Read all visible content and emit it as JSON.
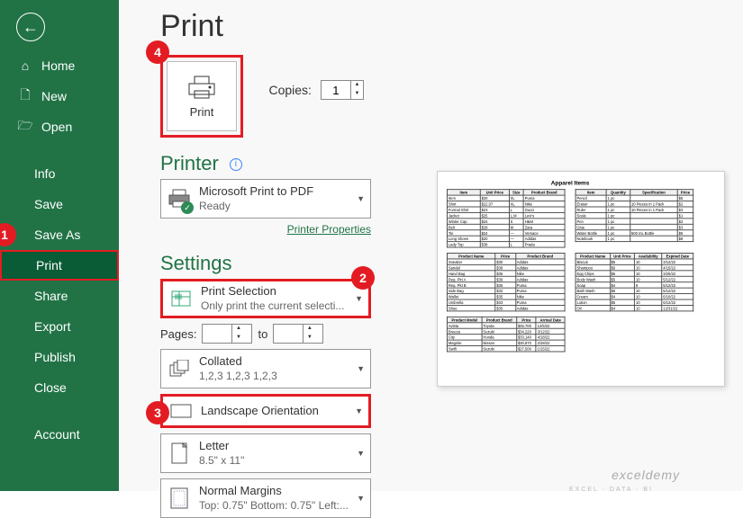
{
  "sidebar": {
    "items": [
      {
        "label": "Home",
        "icon": "⌂"
      },
      {
        "label": "New",
        "icon": "🗋"
      },
      {
        "label": "Open",
        "icon": "📂"
      }
    ],
    "lower_items": [
      {
        "label": "Info"
      },
      {
        "label": "Save"
      },
      {
        "label": "Save As"
      },
      {
        "label": "Print",
        "selected": true
      },
      {
        "label": "Share"
      },
      {
        "label": "Export"
      },
      {
        "label": "Publish"
      },
      {
        "label": "Close"
      }
    ],
    "account": "Account"
  },
  "main": {
    "title": "Print",
    "print_label": "Print",
    "copies_label": "Copies:",
    "copies_value": "1",
    "printer_heading": "Printer",
    "printer_name": "Microsoft Print to PDF",
    "printer_status": "Ready",
    "printer_props": "Printer Properties",
    "settings_heading": "Settings",
    "setting_selection": "Print Selection",
    "setting_selection_sub": "Only print the current selecti...",
    "pages_label": "Pages:",
    "pages_to": "to",
    "collated": "Collated",
    "collated_sub": "1,2,3   1,2,3   1,2,3",
    "orientation": "Landscape Orientation",
    "paper": "Letter",
    "paper_sub": "8.5\" x 11\"",
    "margins": "Normal Margins",
    "margins_sub": "Top: 0.75\" Bottom: 0.75\" Left:..."
  },
  "bubbles": {
    "1": "1",
    "2": "2",
    "3": "3",
    "4": "4"
  },
  "preview": {
    "title": "Apparel Items",
    "tables": {
      "t1": {
        "headers": [
          "Item",
          "Unit Price",
          "Size",
          "Product Brand"
        ],
        "rows": [
          [
            "Item",
            "$20",
            "XL",
            "Puma"
          ],
          [
            "Shirt",
            "$22.07",
            "XL",
            "Nike"
          ],
          [
            "Formal Shirt",
            "$23",
            "L",
            "Gucci"
          ],
          [
            "Jacket",
            "$25",
            "L,M",
            "Levi's"
          ],
          [
            "Winter Cap",
            "$24",
            "S",
            "H&M"
          ],
          [
            "Belt",
            "$29",
            "M",
            "Zara"
          ],
          [
            "Tie",
            "$24",
            "—",
            "Versace"
          ],
          [
            "Long Shoes",
            "$20",
            "—",
            "Adidas"
          ],
          [
            "Lady Top",
            "$38",
            "L",
            "Prada"
          ]
        ]
      },
      "t2": {
        "headers": [
          "Item",
          "Quantity",
          "Specification",
          "Price"
        ],
        "rows": [
          [
            "Pencil",
            "1 pc",
            "",
            "$5"
          ],
          [
            "Eraser",
            "1 pc",
            "10 Pieces in 1 Pack",
            "$2"
          ],
          [
            "Ruler",
            "1 pc",
            "10 Pieces in 1 Pack",
            "$3"
          ],
          [
            "Scale",
            "1 pc",
            "",
            "$1"
          ],
          [
            "Pen",
            "1 pc",
            "",
            "$2"
          ],
          [
            "Glue",
            "1 pc",
            "",
            "$3"
          ],
          [
            "Water Bottle",
            "1 pc",
            "500 mL Bottle",
            "$5"
          ],
          [
            "Notebook",
            "1 pc",
            "",
            "$8"
          ]
        ]
      },
      "t3": {
        "headers": [
          "Product Name",
          "Price",
          "Product Brand"
        ],
        "rows": [
          [
            "Sneaker",
            "$30",
            "Adidas"
          ],
          [
            "Sandal",
            "$38",
            "Adidas"
          ],
          [
            "Hand Bag",
            "$35",
            "Nike"
          ],
          [
            "Reg. Pkt A",
            "$39",
            "Adidas"
          ],
          [
            "Reg. Pkt B",
            "$35",
            "Puma"
          ],
          [
            "Side Bag",
            "$32",
            "Puma"
          ],
          [
            "Wallet",
            "$35",
            "Nike"
          ],
          [
            "Umbrella",
            "$33",
            "Puma"
          ],
          [
            "Shoe",
            "$35",
            "Adidas"
          ]
        ]
      },
      "t4": {
        "headers": [
          "Product Name",
          "Unit Price",
          "Availability",
          "Expired Date"
        ],
        "rows": [
          [
            "Biscuit",
            "$5",
            "10",
            "3/12/22"
          ],
          [
            "Shampoo",
            "$6",
            "10",
            "4/15/22"
          ],
          [
            "Egg Chips",
            "$5",
            "10",
            "3/20/22"
          ],
          [
            "Body Wash",
            "$5",
            "10",
            "5/12/22"
          ],
          [
            "Soap",
            "$4",
            "8",
            "5/12/22"
          ],
          [
            "Bath Wash",
            "$5",
            "10",
            "5/12/22"
          ],
          [
            "Cream",
            "$4",
            "10",
            "6/10/22"
          ],
          [
            "Lotion",
            "$5",
            "10",
            "6/12/22"
          ],
          [
            "Oil",
            "$4",
            "10",
            "12/31/22"
          ]
        ]
      },
      "t5": {
        "headers": [
          "Product Model",
          "Product Brand",
          "Price",
          "Arrival Date"
        ],
        "rows": [
          [
            "Avista",
            "Toyota",
            "$45,700",
            "12/5/22"
          ],
          [
            "Breeza",
            "Suzuki",
            "$34,220",
            "3/12/22"
          ],
          [
            "City",
            "Honda",
            "$33,140",
            "4/18/22"
          ],
          [
            "Magnite",
            "Nissan",
            "$30,870",
            "2/28/22"
          ],
          [
            "Swift",
            "Suzuki",
            "$27,500",
            "1/15/22"
          ]
        ]
      }
    }
  },
  "watermark": "exceldemy",
  "watermark_sub": "EXCEL · DATA · BI",
  "colors": {
    "brand": "#217346",
    "accent": "#e31c23"
  }
}
